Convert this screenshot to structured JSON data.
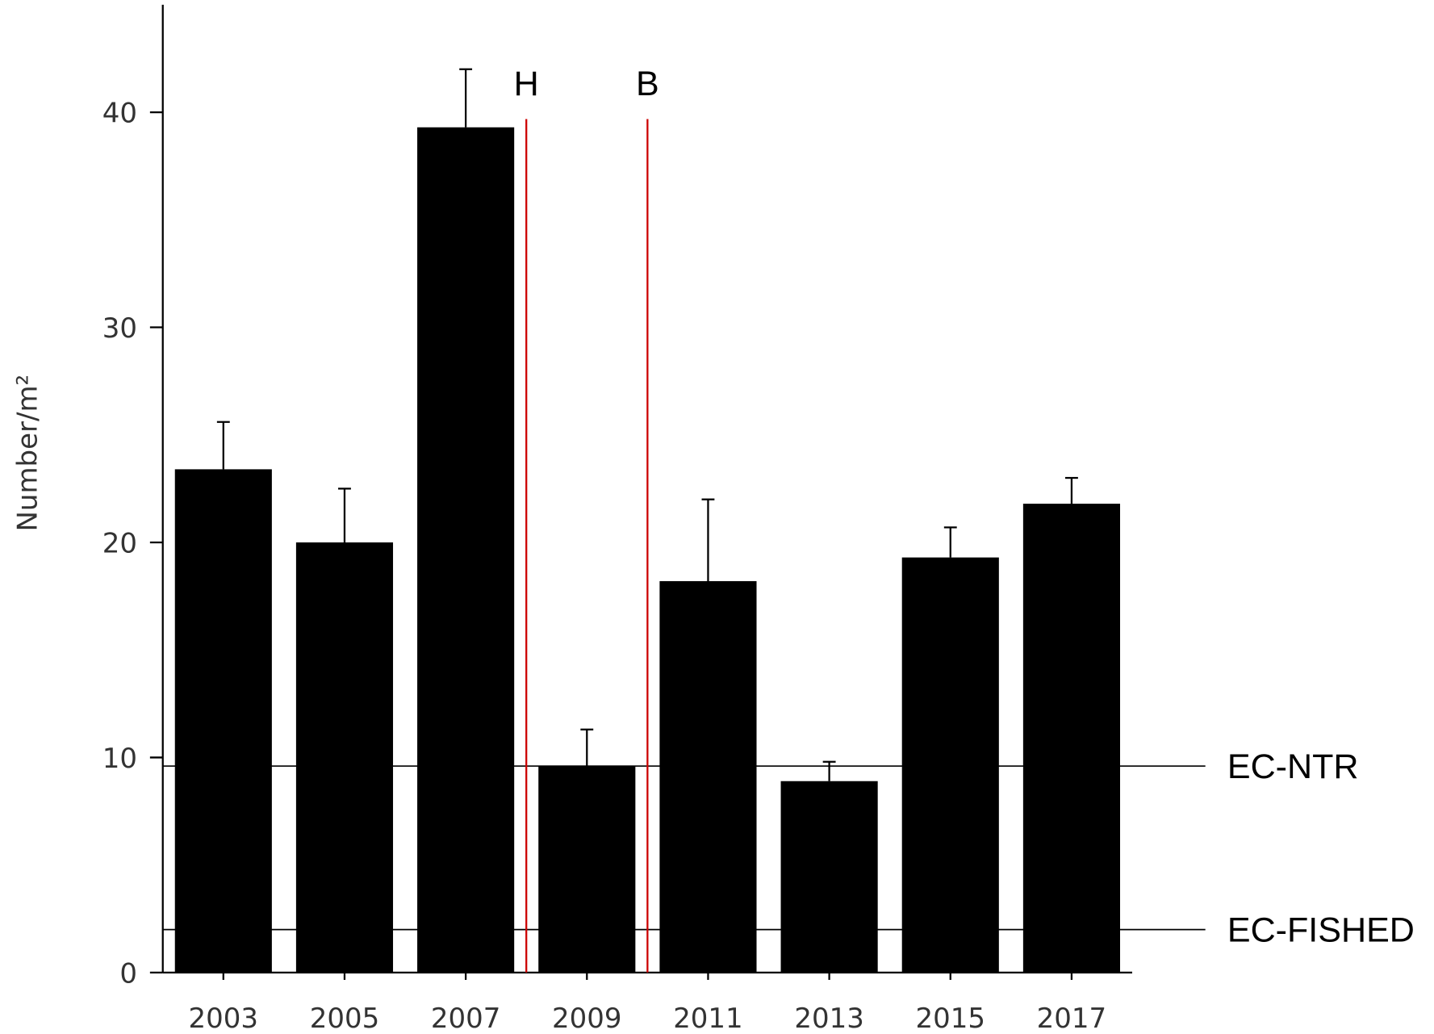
{
  "chart_data": {
    "type": "bar",
    "ylabel": "Number/m²",
    "x": [
      2003,
      2005,
      2007,
      2009,
      2011,
      2013,
      2015,
      2017
    ],
    "values": [
      23.4,
      20.0,
      39.3,
      9.6,
      18.2,
      8.9,
      19.3,
      21.8
    ],
    "errors": [
      2.2,
      2.5,
      2.7,
      1.7,
      3.8,
      0.9,
      1.4,
      1.2
    ],
    "color": "#000000",
    "xlim": [
      2002,
      2018
    ],
    "ylim": [
      0,
      45
    ],
    "yticks": [
      0,
      10,
      20,
      30,
      40
    ],
    "hlines": [
      {
        "y": 9.6,
        "label": "EC-NTR"
      },
      {
        "y": 2,
        "label": "EC-FISHED"
      }
    ],
    "vlines": [
      {
        "x": 2008,
        "label": "H",
        "color": "#cc0000"
      },
      {
        "x": 2010,
        "label": "B",
        "color": "#cc0000"
      }
    ]
  }
}
